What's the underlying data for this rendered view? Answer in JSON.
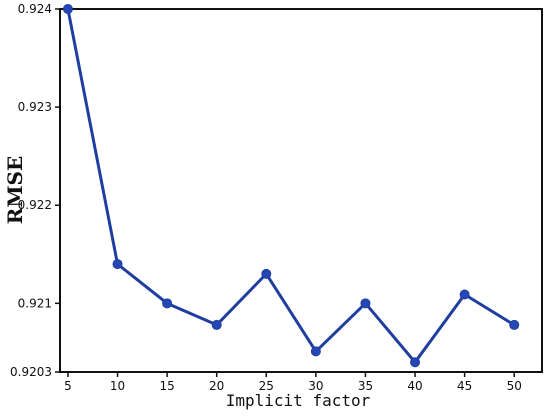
{
  "chart_data": {
    "type": "line",
    "xlabel": "Implicit factor",
    "ylabel": "RMSE",
    "x": [
      5,
      10,
      15,
      20,
      25,
      30,
      35,
      40,
      45,
      50
    ],
    "series": [
      {
        "values": [
          0.924,
          0.9214,
          0.921,
          0.92078,
          0.9213,
          0.92051,
          0.921,
          0.9204,
          0.92109,
          0.92078
        ]
      }
    ],
    "xlim": [
      4.2,
      52.8
    ],
    "ylim": [
      0.9203,
      0.924
    ],
    "x_ticks": [
      5,
      10,
      15,
      20,
      25,
      30,
      35,
      40,
      45,
      50
    ],
    "y_ticks": [
      0.9203,
      0.921,
      0.922,
      0.923,
      0.924
    ],
    "y_tick_labels": [
      "0.9203",
      "0.921",
      "0.922",
      "0.923",
      "0.924"
    ],
    "grid": false,
    "legend": "none",
    "colors": {
      "line": "#1f3ea0",
      "marker": "#2447b5",
      "axis": "#111111",
      "background": "#ffffff"
    }
  }
}
